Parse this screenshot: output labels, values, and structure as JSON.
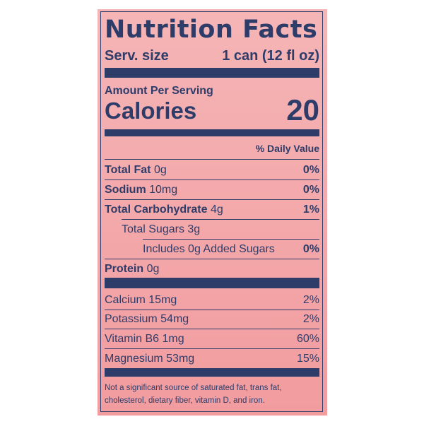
{
  "label": {
    "title": "Nutrition Facts",
    "serving_size_label": "Serv. size",
    "serving_size_value": "1 can (12 fl oz)",
    "amount_per_serving": "Amount Per Serving",
    "calories_label": "Calories",
    "calories_value": "20",
    "daily_value_header": "% Daily Value",
    "nutrients": [
      {
        "name": "Total Fat",
        "amount": "0g",
        "dv": "0%"
      },
      {
        "name": "Sodium",
        "amount": "10mg",
        "dv": "0%"
      },
      {
        "name": "Total Carbohydrate",
        "amount": "4g",
        "dv": "1%"
      },
      {
        "name": "Total Sugars 3g",
        "amount": "",
        "dv": ""
      },
      {
        "name": "Includes 0g Added Sugars",
        "amount": "",
        "dv": "0%"
      },
      {
        "name": "Protein",
        "amount": "0g",
        "dv": ""
      }
    ],
    "vitamins": [
      {
        "text": "Calcium 15mg",
        "dv": "2%"
      },
      {
        "text": "Potassium 54mg",
        "dv": "2%"
      },
      {
        "text": "Vitamin B6 1mg",
        "dv": "60%"
      },
      {
        "text": "Magnesium 53mg",
        "dv": "15%"
      }
    ],
    "footnote_line1": "Not a significant source of saturated fat, trans fat,",
    "footnote_line2": "cholesterol, dietary fiber, vitamin D, and iron."
  },
  "colors": {
    "ink": "#2e3c6a",
    "background": "#f4a9ab"
  }
}
